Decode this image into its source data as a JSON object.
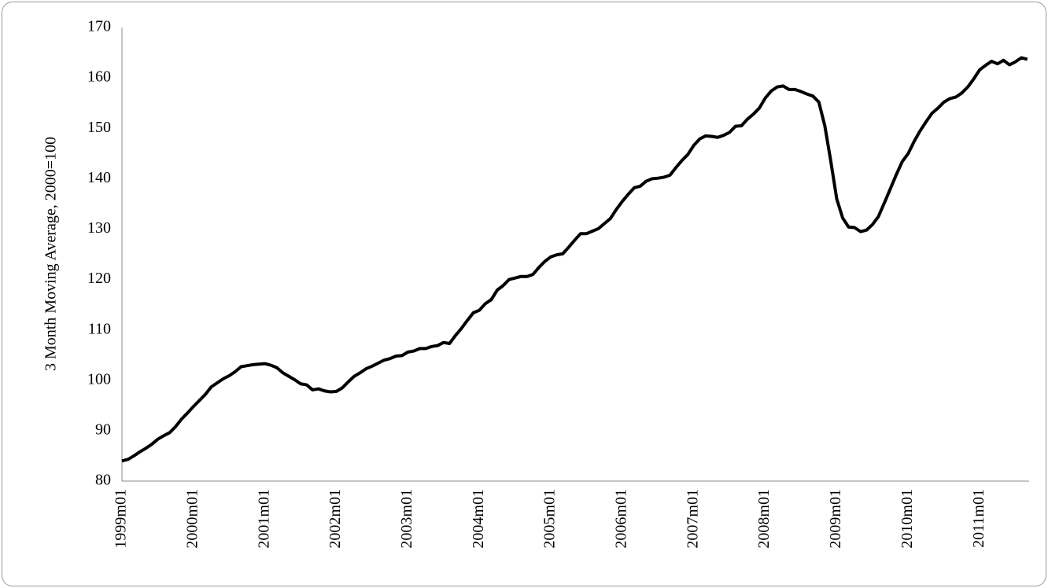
{
  "chart_data": {
    "type": "line",
    "y_label": "3 Month Moving Average, 2000=100",
    "categories": [
      "1999m01",
      null,
      null,
      null,
      null,
      null,
      null,
      null,
      null,
      null,
      null,
      null,
      "2000m01",
      null,
      null,
      null,
      null,
      null,
      null,
      null,
      null,
      null,
      null,
      null,
      "2001m01",
      null,
      null,
      null,
      null,
      null,
      null,
      null,
      null,
      null,
      null,
      null,
      "2002m01",
      null,
      null,
      null,
      null,
      null,
      null,
      null,
      null,
      null,
      null,
      null,
      "2003m01",
      null,
      null,
      null,
      null,
      null,
      null,
      null,
      null,
      null,
      null,
      null,
      "2004m01",
      null,
      null,
      null,
      null,
      null,
      null,
      null,
      null,
      null,
      null,
      null,
      "2005m01",
      null,
      null,
      null,
      null,
      null,
      null,
      null,
      null,
      null,
      null,
      null,
      "2006m01",
      null,
      null,
      null,
      null,
      null,
      null,
      null,
      null,
      null,
      null,
      null,
      "2007m01",
      null,
      null,
      null,
      null,
      null,
      null,
      null,
      null,
      null,
      null,
      null,
      "2008m01",
      null,
      null,
      null,
      null,
      null,
      null,
      null,
      null,
      null,
      null,
      null,
      "2009m01",
      null,
      null,
      null,
      null,
      null,
      null,
      null,
      null,
      null,
      null,
      null,
      "2010m01",
      null,
      null,
      null,
      null,
      null,
      null,
      null,
      null,
      null,
      null,
      null,
      "2011m01",
      null,
      null,
      null,
      null,
      null,
      null,
      null,
      null
    ],
    "values": [
      84,
      84.3,
      85,
      85.8,
      86.5,
      87.3,
      88.3,
      89,
      89.6,
      90.8,
      92.3,
      93.5,
      94.8,
      96,
      97.2,
      98.7,
      99.5,
      100.3,
      100.9,
      101.7,
      102.7,
      102.9,
      103.1,
      103.2,
      103.3,
      103,
      102.5,
      101.5,
      100.8,
      100.1,
      99.3,
      99.1,
      98.1,
      98.3,
      97.9,
      97.7,
      97.8,
      98.5,
      99.7,
      100.8,
      101.5,
      102.3,
      102.8,
      103.4,
      104,
      104.3,
      104.8,
      104.9,
      105.6,
      105.8,
      106.3,
      106.3,
      106.7,
      106.9,
      107.5,
      107.3,
      108.9,
      110.3,
      111.9,
      113.4,
      113.9,
      115.2,
      116,
      117.9,
      118.8,
      120,
      120.3,
      120.6,
      120.6,
      121,
      122.4,
      123.6,
      124.5,
      124.9,
      125.1,
      126.4,
      127.8,
      129.1,
      129.1,
      129.6,
      130.1,
      131.1,
      132.1,
      133.9,
      135.5,
      136.9,
      138.2,
      138.5,
      139.5,
      140,
      140.1,
      140.3,
      140.7,
      142.2,
      143.6,
      144.8,
      146.6,
      147.9,
      148.5,
      148.4,
      148.2,
      148.6,
      149.2,
      150.4,
      150.5,
      151.8,
      152.8,
      154,
      156,
      157.4,
      158.2,
      158.4,
      157.7,
      157.7,
      157.3,
      156.8,
      156.4,
      155.2,
      150.5,
      143.5,
      136,
      132.2,
      130.4,
      130.3,
      129.5,
      129.8,
      130.9,
      132.5,
      135.2,
      138,
      140.8,
      143.4,
      145,
      147.4,
      149.5,
      151.3,
      153,
      154,
      155.2,
      155.9,
      156.2,
      157,
      158.2,
      159.8,
      161.6,
      162.5,
      163.3,
      162.8,
      163.5,
      162.6,
      163.2,
      164,
      163.7
    ],
    "color": "#000000",
    "ylim": [
      80,
      170
    ],
    "yticks": [
      80,
      90,
      100,
      110,
      120,
      130,
      140,
      150,
      160,
      170
    ],
    "grid": false
  }
}
